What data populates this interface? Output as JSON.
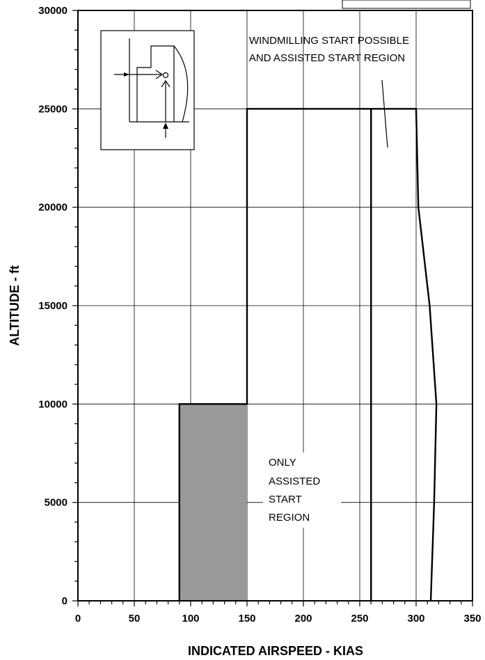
{
  "chart_data": {
    "type": "line",
    "xlabel": "INDICATED AIRSPEED - KIAS",
    "ylabel": "ALTITUDE - ft",
    "xlim": [
      0,
      350
    ],
    "ylim": [
      0,
      30000
    ],
    "xticks": [
      "0",
      "50",
      "100",
      "150",
      "200",
      "250",
      "300",
      "350"
    ],
    "yticks": [
      "0",
      "5000",
      "10000",
      "15000",
      "20000",
      "25000",
      "30000"
    ],
    "grid": true,
    "legend": "none",
    "regions": [
      {
        "name": "ONLY ASSISTED START REGION",
        "fill": "#999999",
        "outline": [
          [
            90,
            0
          ],
          [
            90,
            10000
          ],
          [
            150,
            10000
          ],
          [
            150,
            25000
          ],
          [
            260,
            25000
          ],
          [
            260,
            0
          ]
        ],
        "shaded_area": [
          [
            90,
            0
          ],
          [
            90,
            10000
          ],
          [
            150,
            10000
          ],
          [
            150,
            0
          ]
        ]
      },
      {
        "name": "WINDMILLING START POSSIBLE AND ASSISTED START REGION",
        "outline": [
          [
            260,
            0
          ],
          [
            260,
            25000
          ],
          [
            300,
            25000
          ],
          [
            302,
            20000
          ],
          [
            312,
            15000
          ],
          [
            318,
            10000
          ],
          [
            316,
            5000
          ],
          [
            313,
            0
          ]
        ]
      }
    ],
    "annotations": [
      {
        "lines": [
          "WINDMILLING START POSSIBLE",
          "AND ASSISTED  START REGION"
        ]
      },
      {
        "lines": [
          "ONLY",
          "ASSISTED",
          "START",
          "REGION"
        ]
      }
    ]
  },
  "colors": {
    "line": "#000000",
    "grid": "#000000",
    "shade": "#999999",
    "background": "#ffffff"
  },
  "icon": "engine-inlet-inset-icon"
}
